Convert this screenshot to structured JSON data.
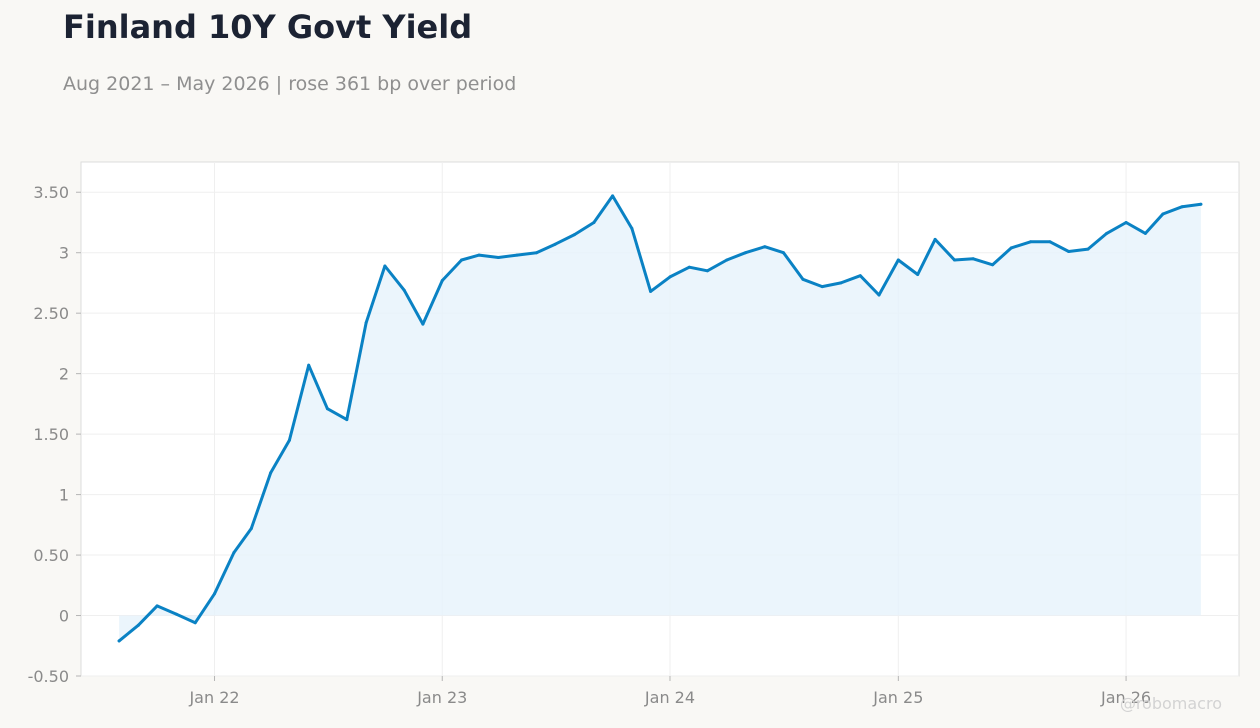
{
  "header": {
    "title": "Finland 10Y Govt Yield",
    "subtitle": "Aug 2021 – May 2026 | rose 361 bp over period"
  },
  "watermark": "@robomacro",
  "colors": {
    "line": "#0a82c4",
    "fill": "#e6f2fb",
    "background": "#f9f8f5",
    "plot_background": "#ffffff",
    "grid": "#efefef"
  },
  "chart_data": {
    "type": "area",
    "x": [
      "2021-08",
      "2021-09",
      "2021-10",
      "2021-11",
      "2021-12",
      "2022-01",
      "2022-02",
      "2022-03",
      "2022-04",
      "2022-05",
      "2022-06",
      "2022-07",
      "2022-08",
      "2022-09",
      "2022-10",
      "2022-11",
      "2022-12",
      "2023-01",
      "2023-02",
      "2023-03",
      "2023-04",
      "2023-05",
      "2023-06",
      "2023-07",
      "2023-08",
      "2023-09",
      "2023-10",
      "2023-11",
      "2023-12",
      "2024-01",
      "2024-02",
      "2024-03",
      "2024-04",
      "2024-05",
      "2024-06",
      "2024-07",
      "2024-08",
      "2024-09",
      "2024-10",
      "2024-11",
      "2024-12",
      "2025-01",
      "2025-02",
      "2025-03",
      "2025-04",
      "2025-05",
      "2025-06",
      "2025-07",
      "2025-08",
      "2025-09",
      "2025-10",
      "2025-11",
      "2025-12",
      "2026-01",
      "2026-02",
      "2026-03",
      "2026-04",
      "2026-05"
    ],
    "series": [
      {
        "values": [
          -0.21,
          -0.08,
          0.08,
          0.01,
          -0.06,
          0.18,
          0.52,
          0.72,
          1.18,
          1.45,
          2.07,
          1.71,
          1.62,
          2.42,
          2.89,
          2.69,
          2.41,
          2.77,
          2.94,
          2.98,
          2.96,
          2.98,
          3.0,
          3.07,
          3.15,
          3.25,
          3.47,
          3.2,
          2.68,
          2.8,
          2.88,
          2.85,
          2.94,
          3.0,
          3.05,
          3.0,
          2.78,
          2.72,
          2.75,
          2.81,
          2.65,
          2.94,
          2.82,
          3.11,
          2.94,
          2.95,
          2.9,
          3.04,
          3.09,
          3.09,
          3.01,
          3.03,
          3.16,
          3.25,
          3.16,
          3.32,
          3.38,
          3.4
        ]
      }
    ],
    "x_ticks": [
      "Jan 22",
      "Jan 23",
      "Jan 24",
      "Jan 25",
      "Jan 26"
    ],
    "x_tick_dates": [
      "2022-01",
      "2023-01",
      "2024-01",
      "2025-01",
      "2026-01"
    ],
    "y_ticks": [
      "-0.50",
      "0",
      "0.50",
      "1",
      "1.50",
      "2",
      "2.50",
      "3",
      "3.50"
    ],
    "y_tick_values": [
      -0.5,
      0,
      0.5,
      1,
      1.5,
      2,
      2.5,
      3,
      3.5
    ],
    "ylim": [
      -0.5,
      3.75
    ],
    "xlim": [
      "2021-06-15",
      "2026-07-15"
    ],
    "grid": true,
    "legend": false
  }
}
